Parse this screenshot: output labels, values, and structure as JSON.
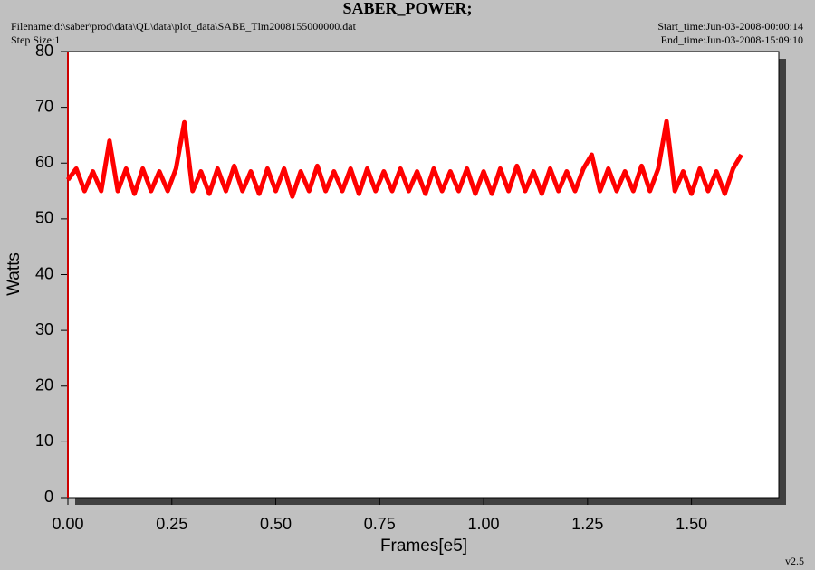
{
  "chart_data": {
    "type": "line",
    "title": "SABER_POWER;",
    "filename": "Filename:d:\\saber\\prod\\data\\QL\\data\\plot_data\\SABE_Tlm2008155000000.dat",
    "step_size": "Step Size:1",
    "start_time": "Start_time:Jun-03-2008-00:00:14",
    "end_time": "End_time:Jun-03-2008-15:09:10",
    "version": "v2.5",
    "x_label": "Frames[e5]",
    "y_label": "Watts",
    "xlim": [
      0,
      1.71
    ],
    "ylim": [
      0,
      80
    ],
    "xticks": [
      {
        "value": 0,
        "label": "0.00"
      },
      0.25,
      {
        "value": 0.5,
        "label": "0.50"
      },
      0.75,
      {
        "value": 1,
        "label": "1.00"
      },
      1.25,
      {
        "value": 1.5,
        "label": "1.50"
      }
    ],
    "yticks": [
      0,
      10,
      20,
      30,
      40,
      50,
      60,
      70,
      80
    ],
    "series": [
      {
        "color": "#ff0000",
        "x": [
          0,
          0.02,
          0.04,
          0.06,
          0.08,
          0.1,
          0.12,
          0.14,
          0.16,
          0.18,
          0.2,
          0.22,
          0.24,
          0.26,
          0.28,
          0.3,
          0.32,
          0.34,
          0.36,
          0.38,
          0.4,
          0.42,
          0.44,
          0.46,
          0.48,
          0.5,
          0.52,
          0.54,
          0.56,
          0.58,
          0.6,
          0.62,
          0.64,
          0.66,
          0.68,
          0.7,
          0.72,
          0.74,
          0.76,
          0.78,
          0.8,
          0.82,
          0.84,
          0.86,
          0.88,
          0.9,
          0.92,
          0.94,
          0.96,
          0.98,
          1,
          1.02,
          1.04,
          1.06,
          1.08,
          1.1,
          1.12,
          1.14,
          1.16,
          1.18,
          1.2,
          1.22,
          1.24,
          1.26,
          1.28,
          1.3,
          1.32,
          1.34,
          1.36,
          1.38,
          1.4,
          1.42,
          1.44,
          1.46,
          1.48,
          1.5,
          1.52,
          1.54,
          1.56,
          1.58,
          1.6,
          1.62
        ],
        "values": [
          57,
          59,
          55,
          58.5,
          55,
          64,
          55,
          59,
          54.5,
          59,
          55,
          58.5,
          55,
          59,
          67.3,
          55,
          58.5,
          54.5,
          59,
          55,
          59.5,
          55,
          58.5,
          54.5,
          59,
          55,
          59,
          54,
          58.5,
          55,
          59.5,
          55,
          58.5,
          55,
          59,
          54.5,
          59,
          55,
          58.5,
          55,
          59,
          55,
          58.5,
          54.5,
          59,
          55,
          58.5,
          55,
          59,
          54.5,
          58.5,
          54.5,
          59,
          55,
          59.5,
          55,
          58.5,
          54.5,
          59,
          55,
          58.5,
          55,
          59,
          61.5,
          55,
          59,
          55,
          58.5,
          55,
          59.5,
          55,
          59,
          67.5,
          55,
          58.5,
          54.5,
          59,
          55,
          58.5,
          54.5,
          59,
          61.5
        ]
      }
    ]
  }
}
